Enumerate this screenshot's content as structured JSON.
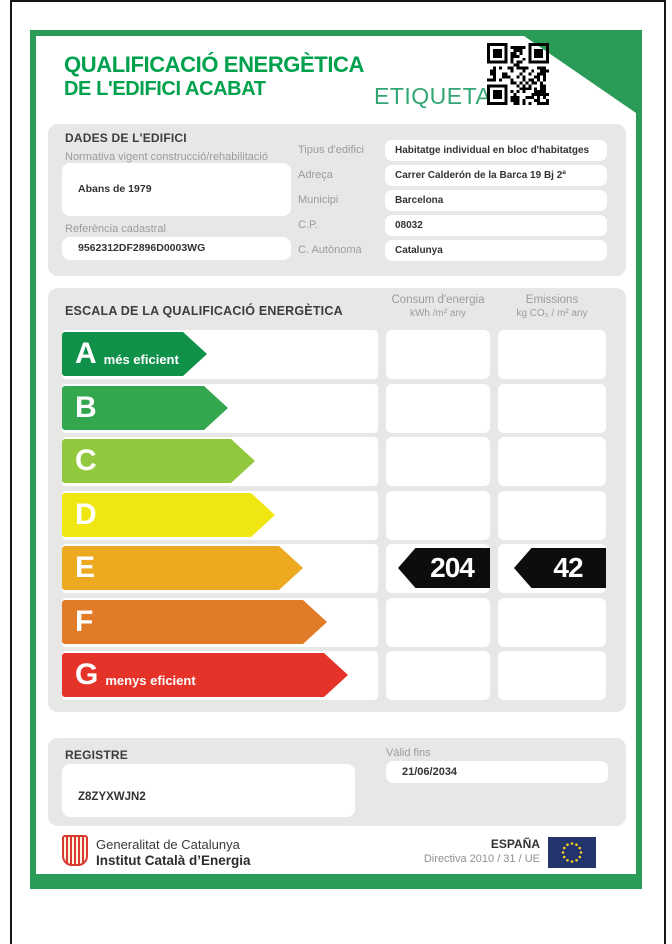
{
  "colors": {
    "brand_green": "#00a14d",
    "frame_green": "#2b9c58",
    "etiqueta_green": "#33a673",
    "marker_black": "#0d0d0d"
  },
  "header": {
    "title_line1": "QUALIFICACIÓ ENERGÈTICA",
    "title_line2": "DE L'EDIFICI ACABAT",
    "etiqueta_label": "ETIQUETA"
  },
  "dades": {
    "section_title": "DADES DE L'EDIFICI",
    "normativa": {
      "label": "Normativa vigent construcció/rehabilitació",
      "value": "Abans de 1979"
    },
    "referencia": {
      "label": "Referència cadastral",
      "value": "9562312DF2896D0003WG"
    },
    "fields": [
      {
        "label": "Tipus d'edifici",
        "value": "Habitatge individual en bloc d'habitatges"
      },
      {
        "label": "Adreça",
        "value": "Carrer Calderón de la Barca 19 Bj 2ª"
      },
      {
        "label": "Municipi",
        "value": "Barcelona"
      },
      {
        "label": "C.P.",
        "value": "08032"
      },
      {
        "label": "C. Autònoma",
        "value": "Catalunya"
      }
    ]
  },
  "escala": {
    "section_title": "ESCALA DE LA QUALIFICACIÓ ENERGÈTICA",
    "consum_header": {
      "title": "Consum d'energia",
      "unit": "kWh /m²  any"
    },
    "emissions_header": {
      "title": "Emissions",
      "unit": "kg CO₂ / m²  any"
    },
    "ratings": [
      {
        "letter": "A",
        "note": "més eficient",
        "color": "#0f9149"
      },
      {
        "letter": "B",
        "note": "",
        "color": "#33a64e"
      },
      {
        "letter": "C",
        "note": "",
        "color": "#92c83e"
      },
      {
        "letter": "D",
        "note": "",
        "color": "#f0e612"
      },
      {
        "letter": "E",
        "note": "",
        "color": "#edaa21"
      },
      {
        "letter": "F",
        "note": "",
        "color": "#e17b28"
      },
      {
        "letter": "G",
        "note": "menys eficient",
        "color": "#e6332a"
      }
    ],
    "result": {
      "letter": "E",
      "consum_value": "204",
      "emissions_value": "42"
    }
  },
  "registre": {
    "section_title": "REGISTRE",
    "value": "Z8ZYXWJN2",
    "valid_label": "Vàlid fins",
    "valid_value": "21/06/2034"
  },
  "footer": {
    "org_line1": "Generalitat de Catalunya",
    "org_line2": "Institut Català d’Energia",
    "country": "ESPAÑA",
    "directive": "Directiva 2010 / 31 / UE"
  }
}
